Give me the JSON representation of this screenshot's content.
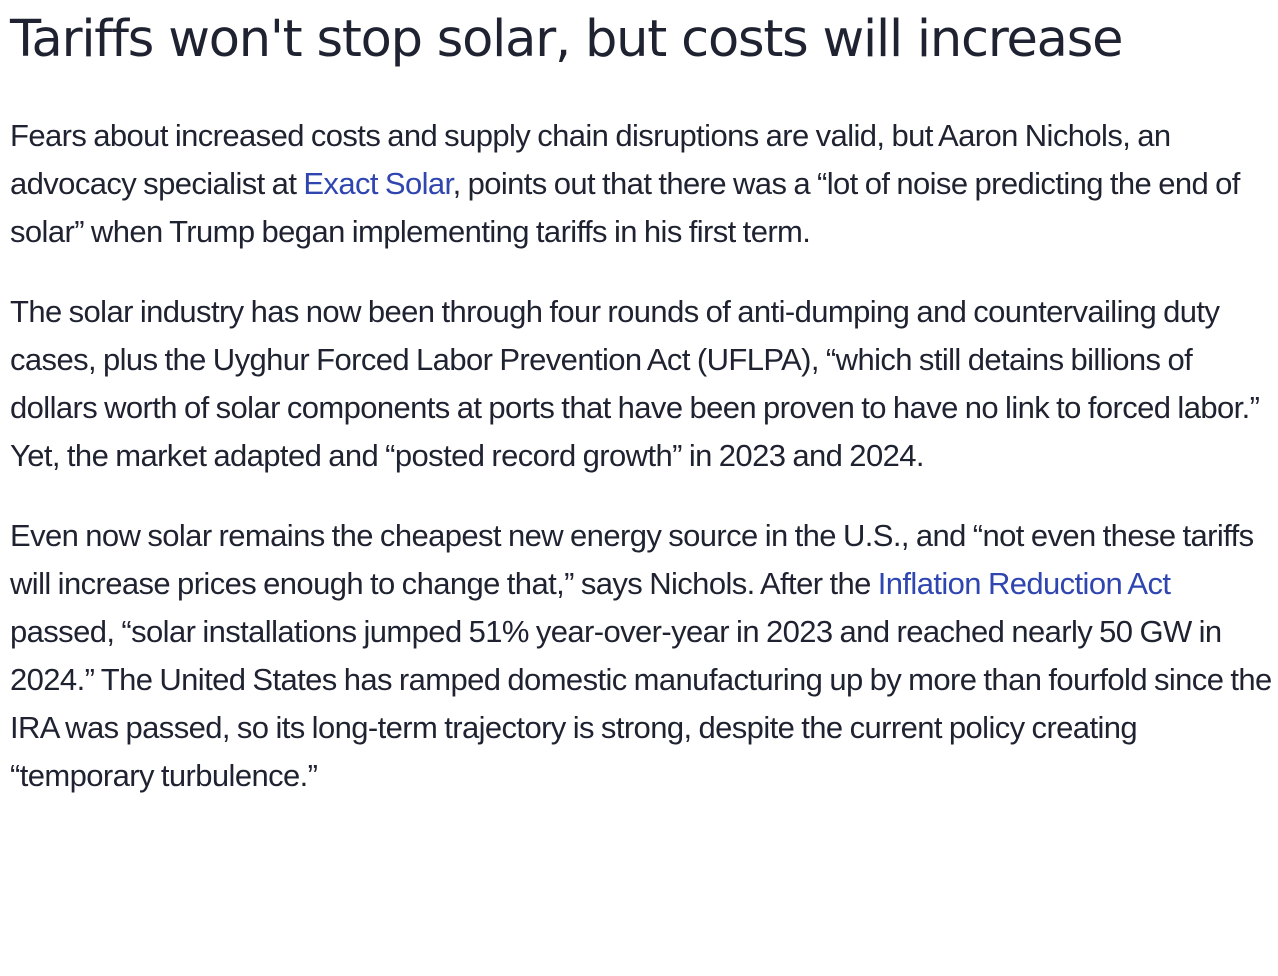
{
  "article": {
    "title": "Tariffs won't stop solar, but costs will increase",
    "link_color": "#2f45b0",
    "text_color": "#1f2230",
    "paragraphs": [
      {
        "before": "Fears about increased costs and supply chain disruptions are valid, but Aaron Nichols, an advocacy specialist at ",
        "link": "Exact Solar",
        "after": ", points out that there was a “lot of noise predicting the end of solar” when Trump began implementing tariffs in his first term."
      },
      {
        "text": "The solar industry has now been through four rounds of anti-dumping and countervailing duty cases, plus the Uyghur Forced Labor Prevention Act (UFLPA), “which still detains billions of dollars worth of solar components at ports that have been proven to have no link to forced labor.” Yet, the market adapted and “posted record growth” in 2023 and 2024."
      },
      {
        "before": "Even now solar remains the cheapest new energy source in the U.S., and “not even these tariffs will increase prices enough to change that,” says Nichols. After the ",
        "link": "Inflation Reduction Act",
        "after": " passed, “solar installations jumped 51% year-over-year in 2023 and reached nearly 50 GW in 2024.” The United States has ramped domestic manufacturing up by more than fourfold since the IRA was passed, so its long-term trajectory is strong, despite the current policy creating “temporary turbulence.”"
      }
    ]
  }
}
